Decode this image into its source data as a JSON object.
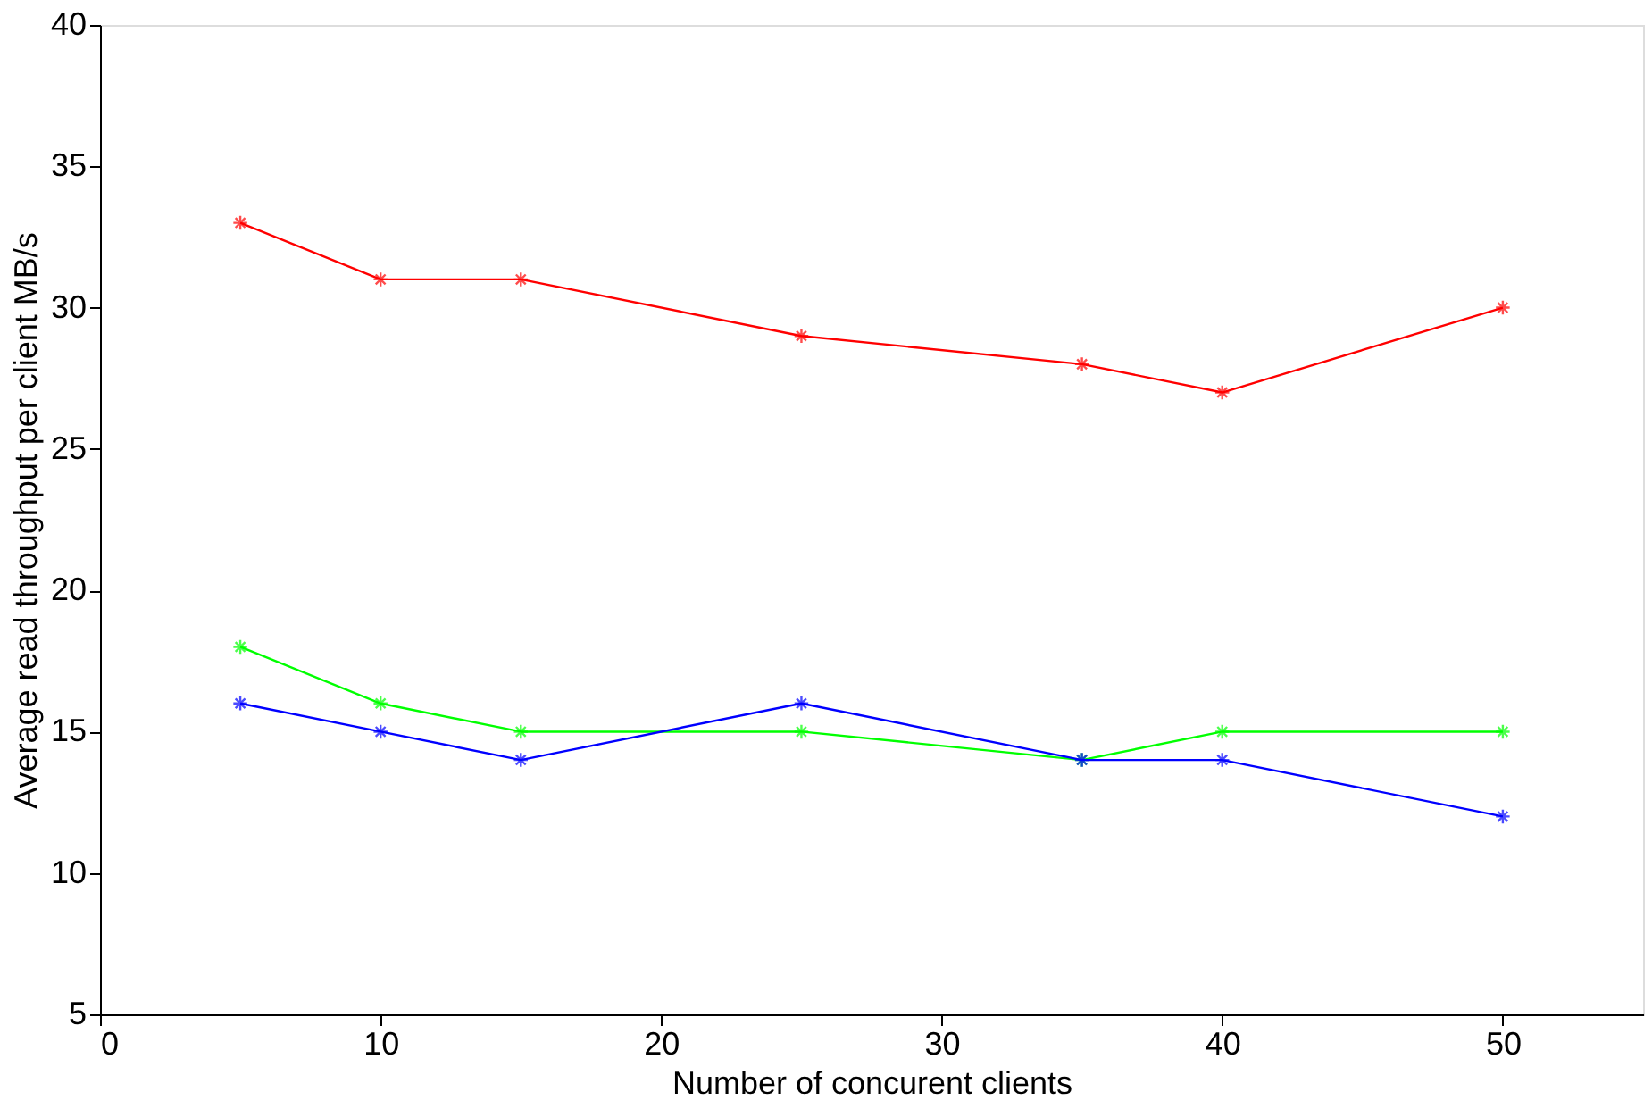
{
  "chart_data": {
    "type": "line",
    "xlabel": "Number of concurent clients",
    "ylabel": "Average read throughput per client MB/s",
    "x": [
      5,
      10,
      15,
      25,
      35,
      40,
      50
    ],
    "series": [
      {
        "color": "#ff0000",
        "marker": "cross",
        "values": [
          33,
          31,
          31,
          29,
          28,
          27,
          30
        ]
      },
      {
        "color": "#00ff00",
        "marker": "cross",
        "values": [
          18,
          16,
          15,
          15,
          14,
          15,
          15
        ]
      },
      {
        "color": "#0000ff",
        "marker": "cross",
        "values": [
          16,
          15,
          14,
          16,
          14,
          14,
          12
        ]
      }
    ],
    "xlim": [
      0,
      55
    ],
    "xticks": [
      0,
      10,
      20,
      30,
      40,
      50
    ],
    "ylim": [
      5,
      40
    ],
    "yticks": [
      5,
      10,
      15,
      20,
      25,
      30,
      35,
      40
    ],
    "grid": false,
    "legend": false,
    "line_style": "solid"
  }
}
